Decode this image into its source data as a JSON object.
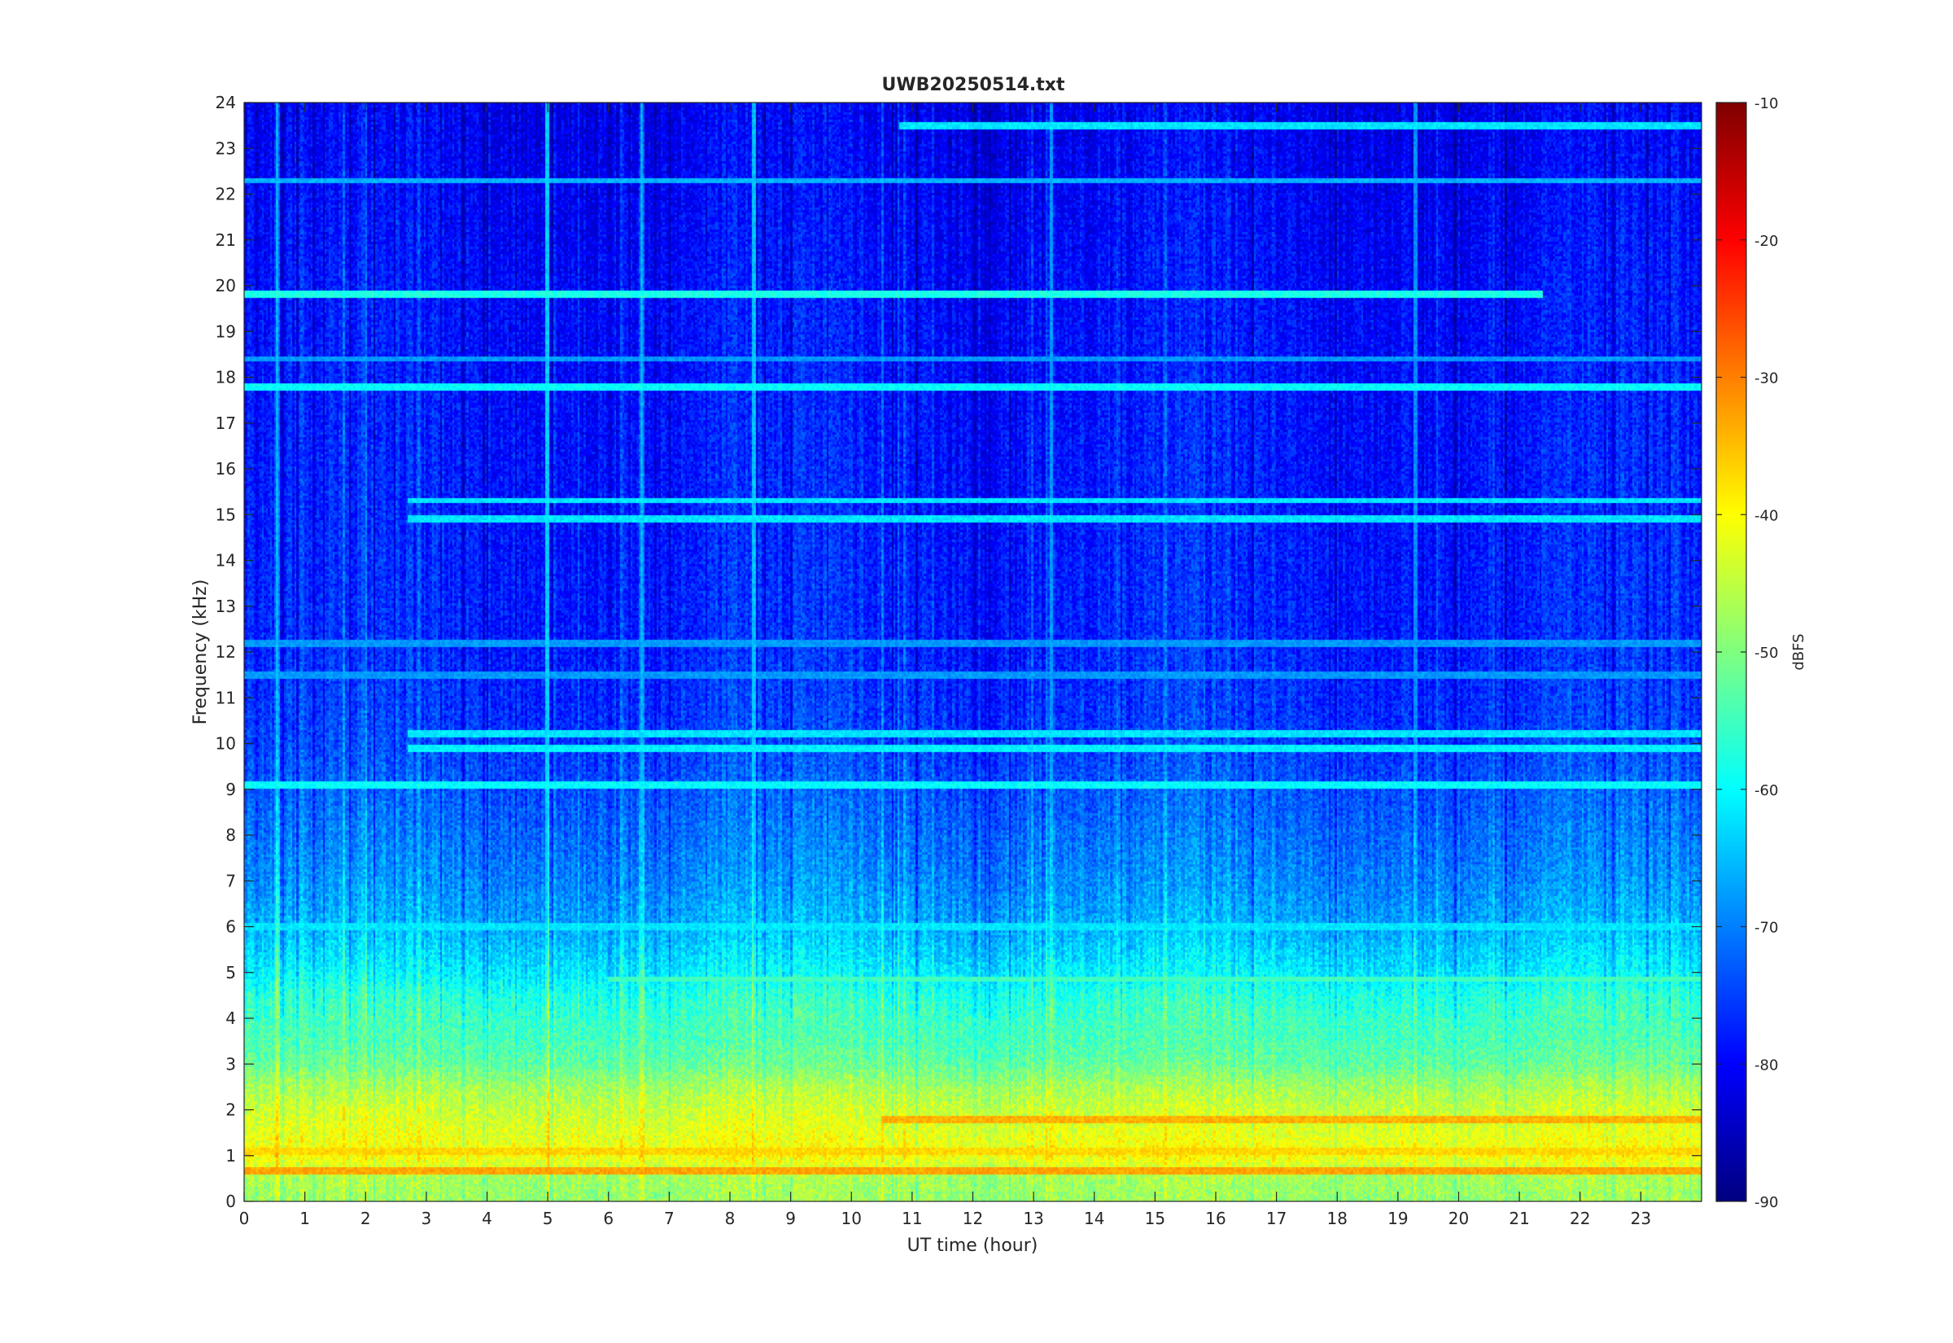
{
  "chart_data": {
    "type": "heatmap",
    "title": "UWB20250514.txt",
    "xlabel": "UT time (hour)",
    "ylabel": "Frequency (kHz)",
    "colorbar_label": "dBFS",
    "xlim": [
      0,
      24
    ],
    "ylim": [
      0,
      24
    ],
    "clim": [
      -90,
      -10
    ],
    "colormap": "jet",
    "x_ticks": [
      0,
      1,
      2,
      3,
      4,
      5,
      6,
      7,
      8,
      9,
      10,
      11,
      12,
      13,
      14,
      15,
      16,
      17,
      18,
      19,
      20,
      21,
      22,
      23
    ],
    "x_tick_labels": [
      "0",
      "1",
      "2",
      "3",
      "4",
      "5",
      "6",
      "7",
      "8",
      "9",
      "10",
      "11",
      "12",
      "13",
      "14",
      "15",
      "16",
      "17",
      "18",
      "19",
      "20",
      "21",
      "22",
      "23"
    ],
    "y_ticks": [
      0,
      1,
      2,
      3,
      4,
      5,
      6,
      7,
      8,
      9,
      10,
      11,
      12,
      13,
      14,
      15,
      16,
      17,
      18,
      19,
      20,
      21,
      22,
      23,
      24
    ],
    "y_tick_labels": [
      "0",
      "1",
      "2",
      "3",
      "4",
      "5",
      "6",
      "7",
      "8",
      "9",
      "10",
      "11",
      "12",
      "13",
      "14",
      "15",
      "16",
      "17",
      "18",
      "19",
      "20",
      "21",
      "22",
      "23",
      "24"
    ],
    "colorbar_ticks": [
      -90,
      -80,
      -70,
      -60,
      -50,
      -40,
      -30,
      -20,
      -10
    ],
    "colorbar_tick_labels": [
      "-90",
      "-80",
      "-70",
      "-60",
      "-50",
      "-40",
      "-30",
      "-20",
      "-10"
    ],
    "background_profile_dBFS": [
      {
        "freq_khz": 0.0,
        "level": -48
      },
      {
        "freq_khz": 0.5,
        "level": -47
      },
      {
        "freq_khz": 1.0,
        "level": -40
      },
      {
        "freq_khz": 1.5,
        "level": -42
      },
      {
        "freq_khz": 2.0,
        "level": -44
      },
      {
        "freq_khz": 2.5,
        "level": -47
      },
      {
        "freq_khz": 3.0,
        "level": -52
      },
      {
        "freq_khz": 3.5,
        "level": -54
      },
      {
        "freq_khz": 4.0,
        "level": -55
      },
      {
        "freq_khz": 4.5,
        "level": -57
      },
      {
        "freq_khz": 5.0,
        "level": -61
      },
      {
        "freq_khz": 6.0,
        "level": -66
      },
      {
        "freq_khz": 7.0,
        "level": -69
      },
      {
        "freq_khz": 8.0,
        "level": -71
      },
      {
        "freq_khz": 9.0,
        "level": -73
      },
      {
        "freq_khz": 10.0,
        "level": -75
      },
      {
        "freq_khz": 12.0,
        "level": -77
      },
      {
        "freq_khz": 16.0,
        "level": -78
      },
      {
        "freq_khz": 20.0,
        "level": -79
      },
      {
        "freq_khz": 24.0,
        "level": -81
      }
    ],
    "narrowband_lines": [
      {
        "freq_khz": 0.65,
        "level": -33,
        "t_start": 0,
        "t_end": 24
      },
      {
        "freq_khz": 1.1,
        "level": -37,
        "t_start": 0,
        "t_end": 24
      },
      {
        "freq_khz": 1.8,
        "level": -34,
        "t_start": 10.5,
        "t_end": 24
      },
      {
        "freq_khz": 4.85,
        "level": -55,
        "t_start": 6,
        "t_end": 24
      },
      {
        "freq_khz": 6.0,
        "level": -62,
        "t_start": 0,
        "t_end": 24
      },
      {
        "freq_khz": 9.1,
        "level": -60,
        "t_start": 0,
        "t_end": 24
      },
      {
        "freq_khz": 9.9,
        "level": -61,
        "t_start": 2.7,
        "t_end": 24
      },
      {
        "freq_khz": 10.2,
        "level": -62,
        "t_start": 2.7,
        "t_end": 24
      },
      {
        "freq_khz": 11.5,
        "level": -68,
        "t_start": 0,
        "t_end": 24
      },
      {
        "freq_khz": 12.2,
        "level": -68,
        "t_start": 0,
        "t_end": 24
      },
      {
        "freq_khz": 14.9,
        "level": -62,
        "t_start": 2.7,
        "t_end": 24
      },
      {
        "freq_khz": 15.3,
        "level": -62,
        "t_start": 2.7,
        "t_end": 24
      },
      {
        "freq_khz": 17.8,
        "level": -60,
        "t_start": 0,
        "t_end": 24
      },
      {
        "freq_khz": 18.4,
        "level": -68,
        "t_start": 0,
        "t_end": 24
      },
      {
        "freq_khz": 19.8,
        "level": -58,
        "t_start": 0,
        "t_end": 21.4
      },
      {
        "freq_khz": 22.3,
        "level": -66,
        "t_start": 0,
        "t_end": 24
      },
      {
        "freq_khz": 23.5,
        "level": -62,
        "t_start": 10.8,
        "t_end": 24
      }
    ],
    "vertical_features": [
      {
        "time_hour": 0.55,
        "level": -66
      },
      {
        "time_hour": 5.0,
        "level": -64
      },
      {
        "time_hour": 6.55,
        "level": -66
      },
      {
        "time_hour": 8.4,
        "level": -65
      },
      {
        "time_hour": 13.3,
        "level": -68
      },
      {
        "time_hour": 19.3,
        "level": -69
      }
    ]
  }
}
